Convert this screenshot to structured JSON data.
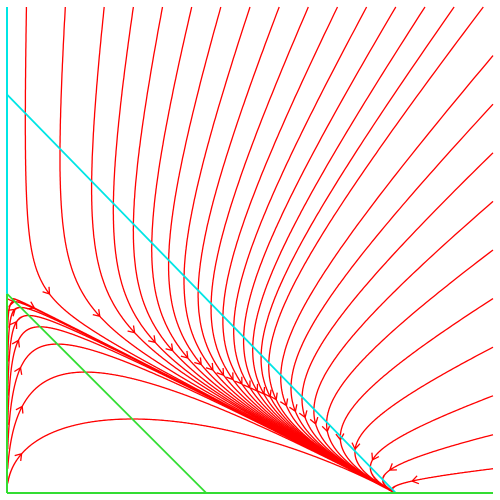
{
  "chart_data": {
    "type": "phase_portrait",
    "title": "",
    "xlabel": "",
    "ylabel": "",
    "xlim": [
      0,
      1
    ],
    "ylim": [
      0,
      1
    ],
    "grid": false,
    "equilibrium": [
      0.8,
      0.0
    ],
    "nullclines": [
      {
        "name": "",
        "color": "#00e5e5",
        "points": [
          [
            0.0,
            0.82
          ],
          [
            0.8,
            0.0
          ]
        ]
      },
      {
        "name": "",
        "color": "#33dd33",
        "points": [
          [
            0.0,
            0.41
          ],
          [
            0.41,
            0.0
          ]
        ]
      }
    ],
    "axis_colors": {
      "y_axis": "#33dd33",
      "x_axis": "#33dd33",
      "y_axis_upper": "#00e5e5"
    },
    "trajectory_color": "#ff0000",
    "trajectories": [
      {
        "start": [
          0.0,
          0.02
        ]
      },
      {
        "start": [
          0.0,
          0.05
        ]
      },
      {
        "start": [
          0.0,
          0.09
        ]
      },
      {
        "start": [
          0.0,
          0.14
        ]
      },
      {
        "start": [
          0.0,
          0.2
        ]
      },
      {
        "start": [
          0.0,
          0.27
        ]
      },
      {
        "start": [
          0.0,
          0.34
        ]
      },
      {
        "start": [
          0.01,
          0.4
        ]
      },
      {
        "start": [
          0.04,
          1.0
        ]
      },
      {
        "start": [
          0.12,
          1.0
        ]
      },
      {
        "start": [
          0.2,
          1.0
        ]
      },
      {
        "start": [
          0.26,
          1.0
        ]
      },
      {
        "start": [
          0.32,
          1.0
        ]
      },
      {
        "start": [
          0.38,
          1.0
        ]
      },
      {
        "start": [
          0.44,
          1.0
        ]
      },
      {
        "start": [
          0.5,
          1.0
        ]
      },
      {
        "start": [
          0.56,
          1.0
        ]
      },
      {
        "start": [
          0.62,
          1.0
        ]
      },
      {
        "start": [
          0.68,
          1.0
        ]
      },
      {
        "start": [
          0.74,
          1.0
        ]
      },
      {
        "start": [
          0.8,
          1.0
        ]
      },
      {
        "start": [
          0.86,
          1.0
        ]
      },
      {
        "start": [
          0.92,
          1.0
        ]
      },
      {
        "start": [
          0.98,
          1.0
        ]
      },
      {
        "start": [
          1.0,
          0.9
        ]
      },
      {
        "start": [
          1.0,
          0.8
        ]
      },
      {
        "start": [
          1.0,
          0.7
        ]
      },
      {
        "start": [
          1.0,
          0.6
        ]
      },
      {
        "start": [
          1.0,
          0.5
        ]
      },
      {
        "start": [
          1.0,
          0.4
        ]
      },
      {
        "start": [
          1.0,
          0.3
        ]
      },
      {
        "start": [
          1.0,
          0.2
        ]
      },
      {
        "start": [
          1.0,
          0.12
        ]
      },
      {
        "start": [
          1.0,
          0.05
        ]
      }
    ]
  }
}
